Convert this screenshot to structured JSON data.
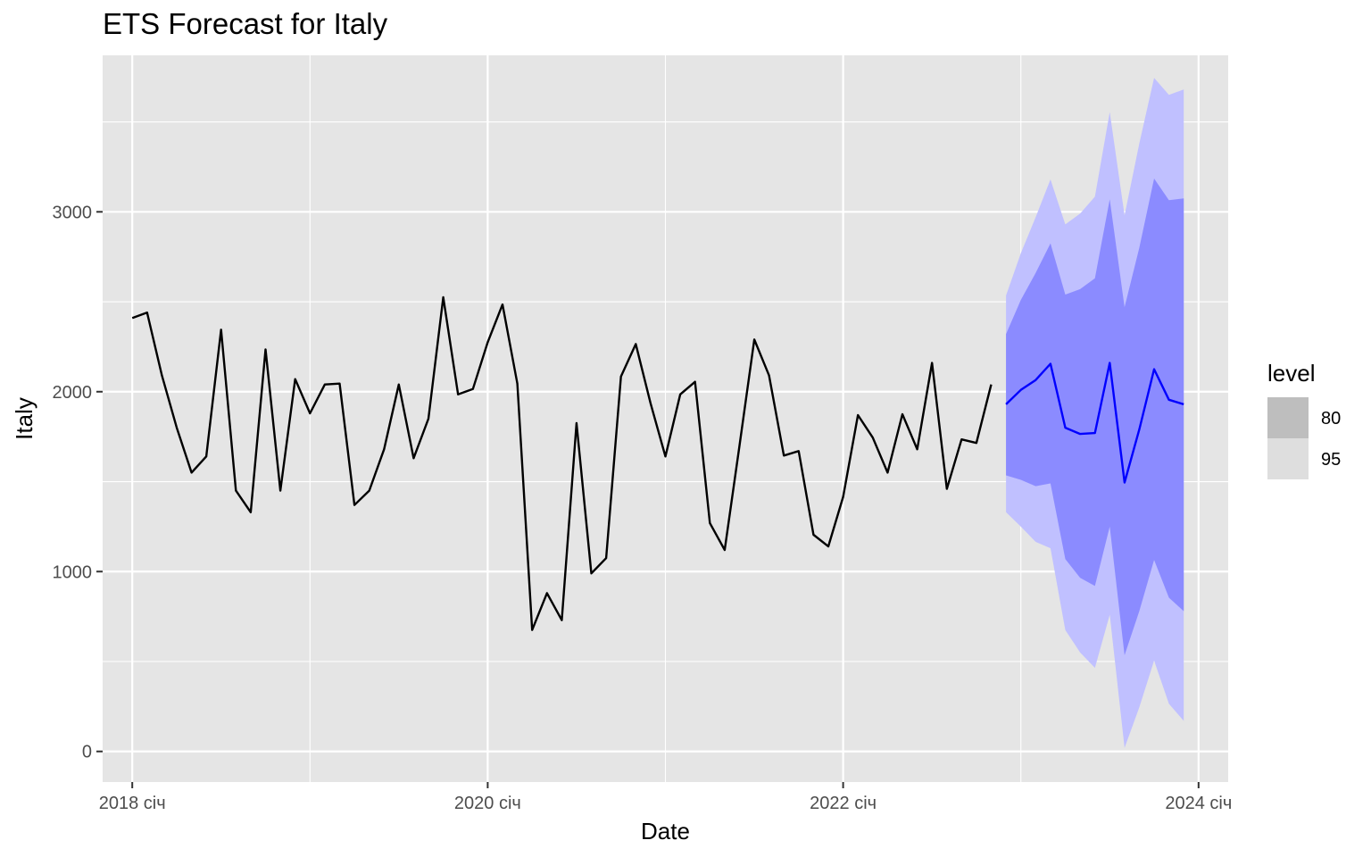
{
  "chart_data": {
    "type": "line",
    "title": "ETS Forecast for Italy",
    "xlabel": "Date",
    "ylabel": "Italy",
    "x_ticks": [
      "2018 січ",
      "2020 січ",
      "2022 січ",
      "2024 січ"
    ],
    "y_ticks": [
      "0",
      "1000",
      "2000",
      "3000"
    ],
    "ylim": [
      -170,
      3870
    ],
    "xlim": [
      "2017-11",
      "2024-03"
    ],
    "grid": true,
    "legend_placement": "right",
    "legend": {
      "title": "level",
      "items": [
        {
          "label": "80",
          "color": "#bebebe"
        },
        {
          "label": "95",
          "color": "#dedede"
        }
      ]
    },
    "series": [
      {
        "color": "#000000",
        "x": [
          "2018-01",
          "2018-02",
          "2018-03",
          "2018-04",
          "2018-05",
          "2018-06",
          "2018-07",
          "2018-08",
          "2018-09",
          "2018-10",
          "2018-11",
          "2018-12",
          "2019-01",
          "2019-02",
          "2019-03",
          "2019-04",
          "2019-05",
          "2019-06",
          "2019-07",
          "2019-08",
          "2019-09",
          "2019-10",
          "2019-11",
          "2019-12",
          "2020-01",
          "2020-02",
          "2020-03",
          "2020-04",
          "2020-05",
          "2020-06",
          "2020-07",
          "2020-08",
          "2020-09",
          "2020-10",
          "2020-11",
          "2020-12",
          "2021-01",
          "2021-02",
          "2021-03",
          "2021-04",
          "2021-05",
          "2021-06",
          "2021-07",
          "2021-08",
          "2021-09",
          "2021-10",
          "2021-11",
          "2021-12",
          "2022-01",
          "2022-02",
          "2022-03",
          "2022-04",
          "2022-05",
          "2022-06",
          "2022-07",
          "2022-08",
          "2022-09",
          "2022-10",
          "2022-11"
        ],
        "values": [
          2410,
          2440,
          2090,
          1800,
          1550,
          1640,
          2345,
          1450,
          1330,
          2235,
          1450,
          2070,
          1880,
          2040,
          2045,
          1370,
          1450,
          1680,
          2040,
          1630,
          1850,
          2525,
          1985,
          2015,
          2275,
          2485,
          2045,
          675,
          880,
          730,
          1825,
          990,
          1075,
          2085,
          2265,
          1935,
          1640,
          1985,
          2055,
          1270,
          1120,
          1700,
          2290,
          2090,
          1645,
          1670,
          1205,
          1140,
          1415,
          1870,
          1745,
          1550,
          1875,
          1680,
          2160,
          1460,
          1735,
          1715,
          2040
        ]
      },
      {
        "color": "#0000ff",
        "x": [
          "2022-12",
          "2023-01",
          "2023-02",
          "2023-03",
          "2023-04",
          "2023-05",
          "2023-06",
          "2023-07",
          "2023-08",
          "2023-09",
          "2023-10",
          "2023-11",
          "2023-12"
        ],
        "values": [
          1930,
          2010,
          2065,
          2155,
          1800,
          1765,
          1770,
          2160,
          1495,
          1790,
          2125,
          1955,
          1930
        ]
      }
    ],
    "intervals": [
      {
        "level": "95",
        "color": "#c0c0ff",
        "x": [
          "2022-12",
          "2023-01",
          "2023-02",
          "2023-03",
          "2023-04",
          "2023-05",
          "2023-06",
          "2023-07",
          "2023-08",
          "2023-09",
          "2023-10",
          "2023-11",
          "2023-12"
        ],
        "lower": [
          1330,
          1250,
          1165,
          1130,
          675,
          550,
          465,
          760,
          20,
          245,
          505,
          265,
          170
        ],
        "upper": [
          2535,
          2770,
          2970,
          3180,
          2930,
          2990,
          3085,
          3555,
          2980,
          3380,
          3745,
          3650,
          3680
        ]
      },
      {
        "level": "80",
        "color": "#8b8bff",
        "x": [
          "2022-12",
          "2023-01",
          "2023-02",
          "2023-03",
          "2023-04",
          "2023-05",
          "2023-06",
          "2023-07",
          "2023-08",
          "2023-09",
          "2023-10",
          "2023-11",
          "2023-12"
        ],
        "lower": [
          1535,
          1510,
          1475,
          1490,
          1070,
          965,
          920,
          1250,
          535,
          780,
          1065,
          855,
          780
        ],
        "upper": [
          2320,
          2510,
          2660,
          2825,
          2540,
          2570,
          2630,
          3070,
          2470,
          2800,
          3185,
          3065,
          3075
        ]
      }
    ]
  }
}
